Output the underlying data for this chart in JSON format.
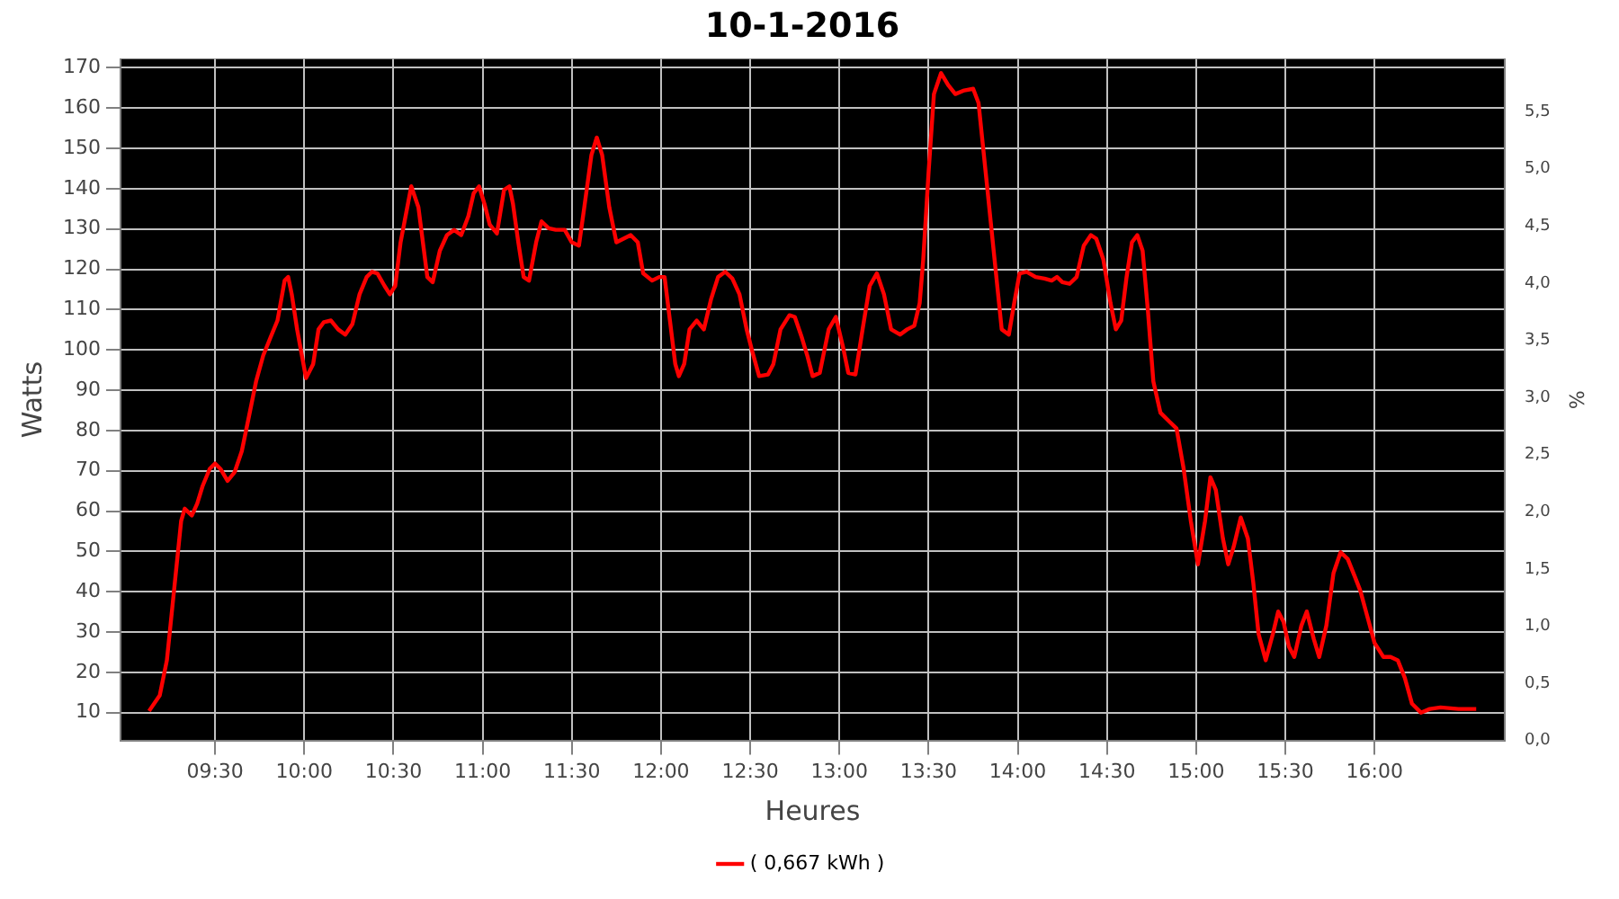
{
  "chart_data": {
    "type": "line",
    "title": "10-1-2016",
    "xlabel": "Heures",
    "ylabel": "Watts",
    "y2label": "%",
    "xlim": [
      8.97,
      16.73
    ],
    "ylim": [
      3.1,
      172.2
    ],
    "y2lim": [
      0,
      5.96
    ],
    "xticks": [
      {
        "value": 9.5,
        "label": "09:30"
      },
      {
        "value": 10,
        "label": "10:00"
      },
      {
        "value": 10.5,
        "label": "10:30"
      },
      {
        "value": 11,
        "label": "11:00"
      },
      {
        "value": 11.5,
        "label": "11:30"
      },
      {
        "value": 12,
        "label": "12:00"
      },
      {
        "value": 12.5,
        "label": "12:30"
      },
      {
        "value": 13,
        "label": "13:00"
      },
      {
        "value": 13.5,
        "label": "13:30"
      },
      {
        "value": 14,
        "label": "14:00"
      },
      {
        "value": 14.5,
        "label": "14:30"
      },
      {
        "value": 15,
        "label": "15:00"
      },
      {
        "value": 15.5,
        "label": "15:30"
      },
      {
        "value": 16,
        "label": "16:00"
      }
    ],
    "yticks": [
      10,
      20,
      30,
      40,
      50,
      60,
      70,
      80,
      90,
      100,
      110,
      120,
      130,
      140,
      150,
      160,
      170
    ],
    "y2ticks": [
      {
        "value": 0,
        "label": "0,0"
      },
      {
        "value": 0.5,
        "label": "0,5"
      },
      {
        "value": 1,
        "label": "1,0"
      },
      {
        "value": 1.5,
        "label": "1,5"
      },
      {
        "value": 2,
        "label": "2,0"
      },
      {
        "value": 2.5,
        "label": "2,5"
      },
      {
        "value": 3,
        "label": "3,0"
      },
      {
        "value": 3.5,
        "label": "3,5"
      },
      {
        "value": 4,
        "label": "4,0"
      },
      {
        "value": 4.5,
        "label": "4,5"
      },
      {
        "value": 5,
        "label": "5,0"
      },
      {
        "value": 5.5,
        "label": "5,5"
      }
    ],
    "grid": true,
    "legend": "bottom",
    "marker": "none",
    "line_style": "solid",
    "x": [
      9.13,
      9.19,
      9.23,
      9.27,
      9.31,
      9.33,
      9.37,
      9.4,
      9.43,
      9.47,
      9.5,
      9.53,
      9.57,
      9.61,
      9.65,
      9.69,
      9.73,
      9.77,
      9.81,
      9.85,
      9.89,
      9.91,
      9.93,
      9.96,
      10.01,
      10.05,
      10.08,
      10.11,
      10.15,
      10.19,
      10.23,
      10.27,
      10.31,
      10.35,
      10.38,
      10.41,
      10.45,
      10.48,
      10.51,
      10.54,
      10.6,
      10.64,
      10.69,
      10.72,
      10.76,
      10.8,
      10.84,
      10.88,
      10.92,
      10.95,
      10.98,
      11.01,
      11.04,
      11.08,
      11.12,
      11.15,
      11.17,
      11.2,
      11.23,
      11.26,
      11.3,
      11.33,
      11.37,
      11.41,
      11.46,
      11.5,
      11.54,
      11.57,
      11.61,
      11.64,
      11.67,
      11.71,
      11.75,
      11.79,
      11.83,
      11.87,
      11.9,
      11.95,
      11.99,
      12.02,
      12.05,
      12.08,
      12.1,
      12.13,
      12.16,
      12.2,
      12.24,
      12.28,
      12.32,
      12.36,
      12.4,
      12.44,
      12.48,
      12.51,
      12.55,
      12.6,
      12.63,
      12.67,
      12.72,
      12.75,
      12.79,
      12.82,
      12.85,
      12.89,
      12.94,
      12.98,
      13.02,
      13.05,
      13.09,
      13.13,
      13.17,
      13.21,
      13.25,
      13.29,
      13.34,
      13.38,
      13.42,
      13.45,
      13.47,
      13.5,
      13.53,
      13.57,
      13.61,
      13.65,
      13.7,
      13.75,
      13.78,
      13.82,
      13.87,
      13.91,
      13.95,
      13.98,
      14.01,
      14.05,
      14.1,
      14.15,
      14.19,
      14.22,
      14.25,
      14.29,
      14.33,
      14.37,
      14.41,
      14.44,
      14.48,
      14.52,
      14.55,
      14.58,
      14.61,
      14.64,
      14.67,
      14.7,
      14.73,
      14.76,
      14.8,
      14.85,
      14.89,
      14.93,
      14.97,
      15.01,
      15.05,
      15.08,
      15.11,
      15.15,
      15.18,
      15.21,
      15.25,
      15.29,
      15.32,
      15.35,
      15.39,
      15.43,
      15.46,
      15.49,
      15.52,
      15.55,
      15.59,
      15.62,
      15.66,
      15.69,
      15.73,
      15.77,
      15.81,
      15.85,
      15.89,
      15.92,
      15.96,
      16.0,
      16.05,
      16.09,
      16.13,
      16.17,
      16.21,
      16.26,
      16.31,
      16.37,
      16.47,
      16.57
    ],
    "series": [
      {
        "name": "( 0,667 kWh )",
        "color": "#ff0000",
        "values": [
          10.4,
          14.3,
          23.0,
          40.3,
          57.6,
          60.6,
          58.9,
          61.9,
          66.2,
          70.5,
          71.8,
          70.5,
          67.5,
          69.7,
          74.9,
          83.5,
          92.2,
          98.6,
          103.0,
          107.3,
          117.2,
          118.1,
          113.8,
          105.1,
          93.0,
          96.5,
          105.1,
          106.9,
          107.3,
          105.1,
          103.8,
          106.4,
          113.8,
          118.1,
          119.4,
          119.0,
          115.9,
          113.8,
          115.9,
          126.7,
          140.6,
          135.4,
          118.1,
          116.8,
          124.6,
          128.5,
          129.8,
          128.5,
          133.2,
          138.9,
          140.6,
          136.3,
          131.1,
          128.9,
          139.7,
          140.6,
          136.3,
          126.7,
          118.1,
          117.2,
          126.7,
          131.9,
          130.2,
          129.8,
          129.8,
          126.7,
          125.9,
          135.4,
          148.4,
          152.7,
          148.4,
          135.4,
          126.7,
          127.6,
          128.5,
          126.7,
          119.0,
          117.2,
          118.1,
          118.1,
          107.3,
          96.5,
          93.5,
          96.5,
          105.1,
          107.3,
          105.1,
          112.5,
          118.1,
          119.4,
          117.7,
          113.8,
          105.1,
          99.9,
          93.5,
          93.9,
          96.5,
          105.1,
          108.6,
          108.2,
          103.0,
          98.6,
          93.5,
          94.3,
          105.1,
          108.2,
          100.8,
          94.3,
          93.9,
          105.1,
          115.9,
          119.0,
          113.8,
          105.1,
          103.8,
          105.1,
          106.0,
          111.6,
          122.4,
          144.1,
          163.5,
          168.7,
          165.7,
          163.5,
          164.4,
          164.8,
          161.3,
          144.1,
          122.4,
          105.1,
          103.8,
          111.6,
          119.0,
          119.4,
          118.1,
          117.7,
          117.2,
          118.1,
          116.8,
          116.4,
          118.1,
          125.9,
          128.5,
          127.6,
          122.4,
          111.6,
          105.1,
          107.3,
          118.1,
          126.7,
          128.5,
          124.6,
          109.5,
          92.2,
          84.4,
          82.2,
          80.5,
          70.5,
          57.6,
          46.8,
          57.6,
          68.4,
          65.3,
          53.2,
          46.8,
          51.1,
          58.4,
          53.2,
          42.4,
          29.5,
          23.0,
          29.5,
          35.1,
          32.5,
          26.4,
          23.8,
          31.6,
          35.1,
          28.2,
          23.8,
          31.6,
          44.6,
          49.8,
          48.1,
          43.7,
          40.3,
          33.8,
          27.3,
          23.8,
          23.8,
          23.0,
          18.6,
          12.2,
          10.0,
          10.9,
          11.3,
          10.9,
          10.9
        ]
      }
    ]
  }
}
